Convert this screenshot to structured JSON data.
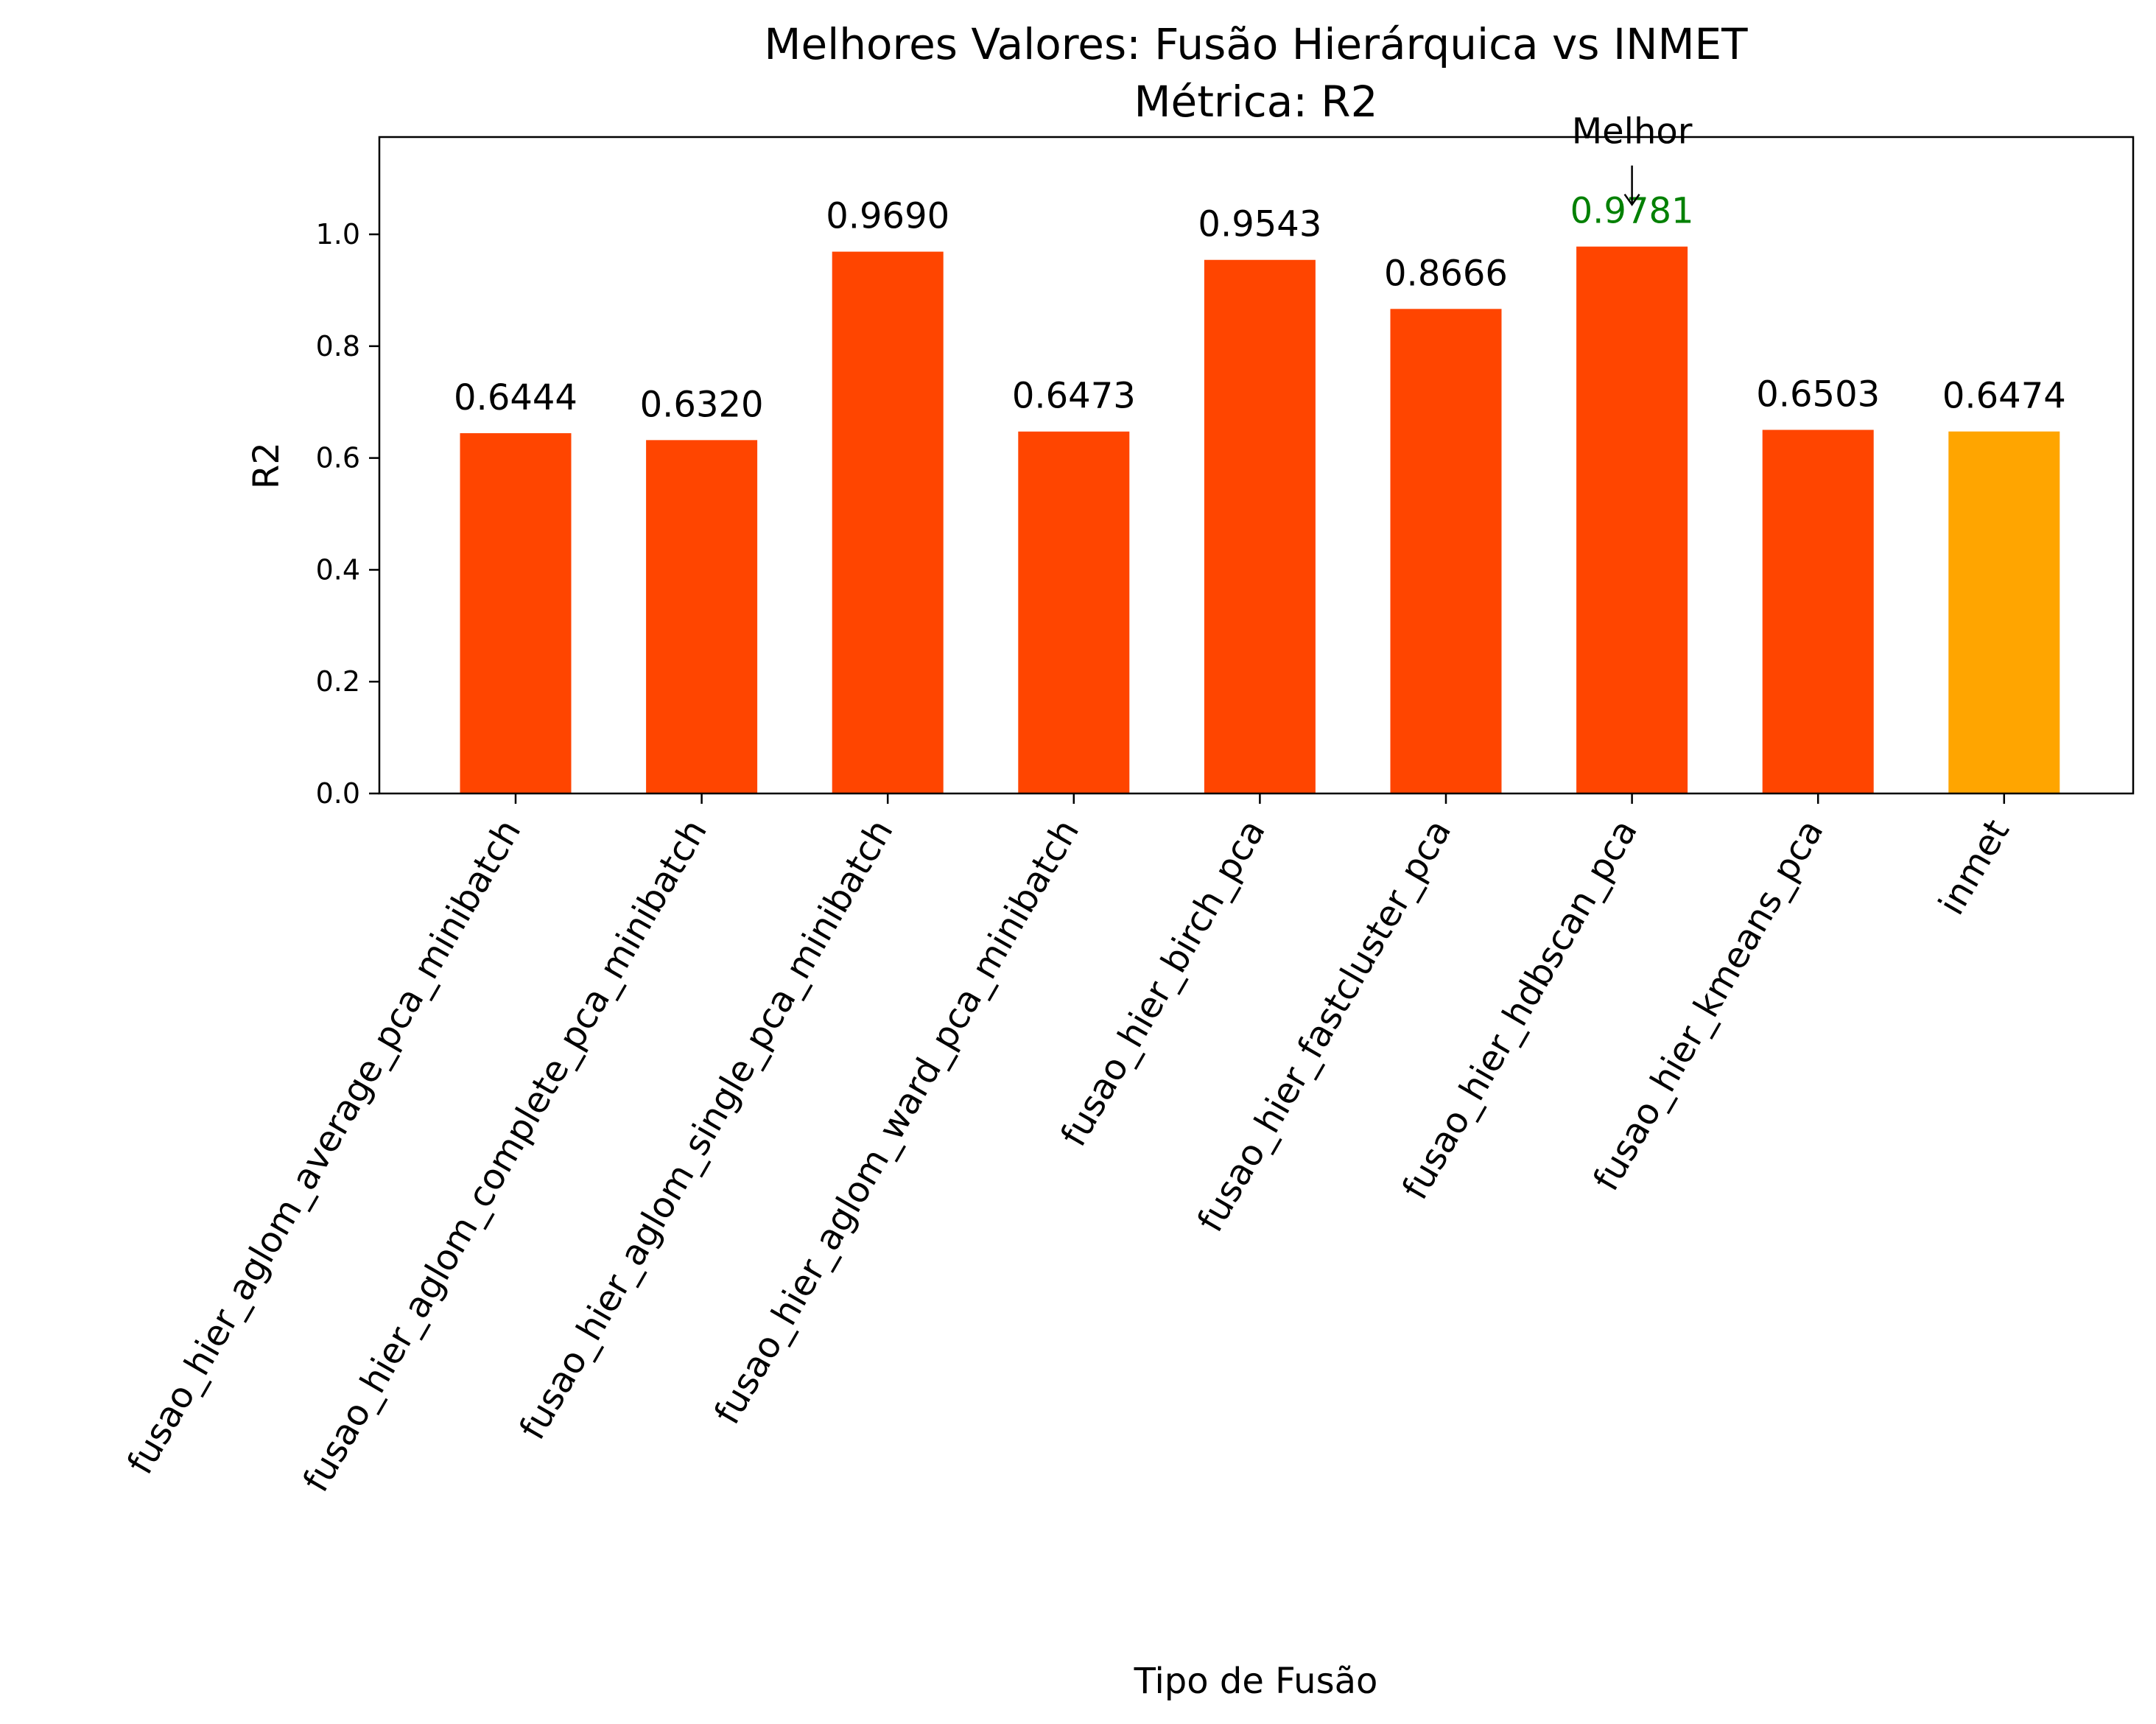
{
  "chart_data": {
    "type": "bar",
    "title": "Melhores Valores: Fusão Hierárquica vs INMET",
    "subtitle": "Métrica: R2",
    "xlabel": "Tipo de Fusão",
    "ylabel": "R2",
    "ylim": [
      0,
      1.174
    ],
    "yticks": [
      "0.0",
      "0.2",
      "0.4",
      "0.6",
      "0.8",
      "1.0"
    ],
    "ytick_values": [
      0.0,
      0.2,
      0.4,
      0.6,
      0.8,
      1.0
    ],
    "grid": false,
    "categories": [
      "fusao_hier_aglom_average_pca_minibatch",
      "fusao_hier_aglom_complete_pca_minibatch",
      "fusao_hier_aglom_single_pca_minibatch",
      "fusao_hier_aglom_ward_pca_minibatch",
      "fusao_hier_birch_pca",
      "fusao_hier_fastcluster_pca",
      "fusao_hier_hdbscan_pca",
      "fusao_hier_kmeans_pca",
      "inmet"
    ],
    "values": [
      0.6444,
      0.632,
      0.969,
      0.6473,
      0.9543,
      0.8666,
      0.9781,
      0.6503,
      0.6474
    ],
    "value_labels": [
      "0.6444",
      "0.6320",
      "0.9690",
      "0.6473",
      "0.9543",
      "0.8666",
      "0.9781",
      "0.6503",
      "0.6474"
    ],
    "bar_colors": [
      "#ff4500",
      "#ff4500",
      "#ff4500",
      "#ff4500",
      "#ff4500",
      "#ff4500",
      "#ff4500",
      "#ff4500",
      "#ffa500"
    ],
    "best_index": 6,
    "best_label_color": "#008000",
    "annotation": {
      "text": "Melhor",
      "target_index": 6,
      "arrow": "↓"
    }
  }
}
